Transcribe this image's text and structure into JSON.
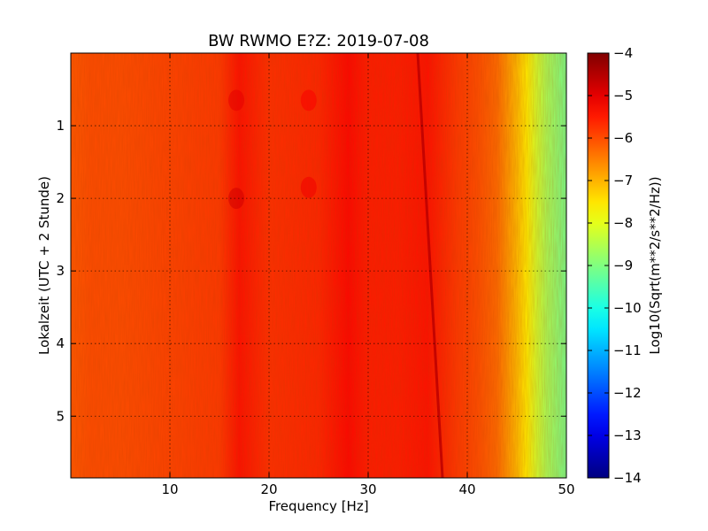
{
  "chart_data": {
    "type": "heatmap",
    "title": "BW RWMO E?Z: 2019-07-08",
    "xlabel": "Frequency [Hz]",
    "ylabel": "Lokalzeit (UTC + 2 Stunde)",
    "xlim": [
      0,
      50
    ],
    "ylim": [
      5.85,
      0
    ],
    "y_inverted": true,
    "x_ticks": [
      10,
      20,
      30,
      40,
      50
    ],
    "y_ticks": [
      1,
      2,
      3,
      4,
      5
    ],
    "grid": true,
    "colormap": "jet",
    "colorbar": {
      "label": "Log10(Sqrt(m**2/s**2/Hz))",
      "range": [
        -14,
        -4
      ],
      "ticks": [
        -4,
        -5,
        -6,
        -7,
        -8,
        -9,
        -10,
        -11,
        -12,
        -13,
        -14
      ]
    },
    "frequency_profile": {
      "frequency_hz": [
        0,
        2,
        5,
        10,
        15,
        17,
        20,
        25,
        28,
        30,
        33,
        36,
        39,
        41,
        43,
        44,
        45,
        46,
        47,
        48,
        50
      ],
      "log10_amplitude": [
        -6.1,
        -6.0,
        -6.0,
        -5.9,
        -5.8,
        -5.4,
        -5.7,
        -5.6,
        -5.3,
        -5.5,
        -5.5,
        -5.4,
        -5.8,
        -6.0,
        -6.3,
        -6.7,
        -7.1,
        -7.6,
        -8.2,
        -8.6,
        -9.1
      ]
    },
    "features": [
      {
        "type": "drifting_line",
        "frequency_start_hz": 35,
        "frequency_end_hz": 37.5,
        "time_start": 0,
        "time_end": 5.85,
        "log10_amplitude": -4.6
      },
      {
        "type": "hotspot",
        "frequency_hz": 16.7,
        "time": 2.0,
        "log10_amplitude": -4.8
      },
      {
        "type": "hotspot",
        "frequency_hz": 16.7,
        "time": 0.65,
        "log10_amplitude": -5.0
      },
      {
        "type": "hotspot",
        "frequency_hz": 24,
        "time": 1.85,
        "log10_amplitude": -5.1
      },
      {
        "type": "hotspot",
        "frequency_hz": 24,
        "time": 0.65,
        "log10_amplitude": -5.2
      }
    ]
  }
}
